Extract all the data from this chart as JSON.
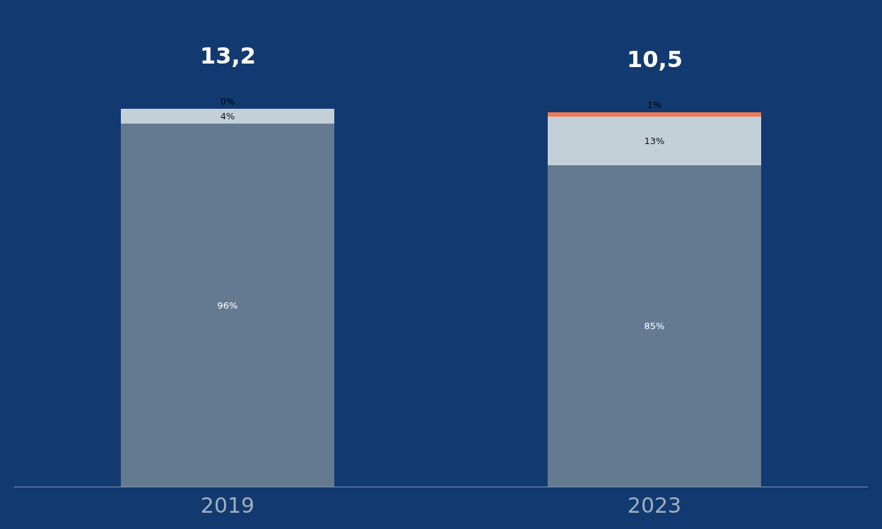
{
  "chart_data": {
    "type": "bar",
    "stacked": true,
    "categories": [
      "2019",
      "2023"
    ],
    "series": [
      {
        "color": "#647a91",
        "values": [
          96,
          85
        ],
        "value_labels": [
          "96%",
          "85%"
        ]
      },
      {
        "color": "#c3d0d8",
        "values": [
          4,
          13
        ],
        "value_labels": [
          "4%",
          "13%"
        ]
      },
      {
        "color": "#f07850",
        "values": [
          0,
          1
        ],
        "value_labels": [
          "0%",
          "1%"
        ]
      }
    ],
    "annotations": [
      {
        "text": "13,2",
        "x": "2019",
        "y": 100
      },
      {
        "text": "10,5",
        "x": "2023",
        "y": 99
      }
    ],
    "grid": false
  }
}
